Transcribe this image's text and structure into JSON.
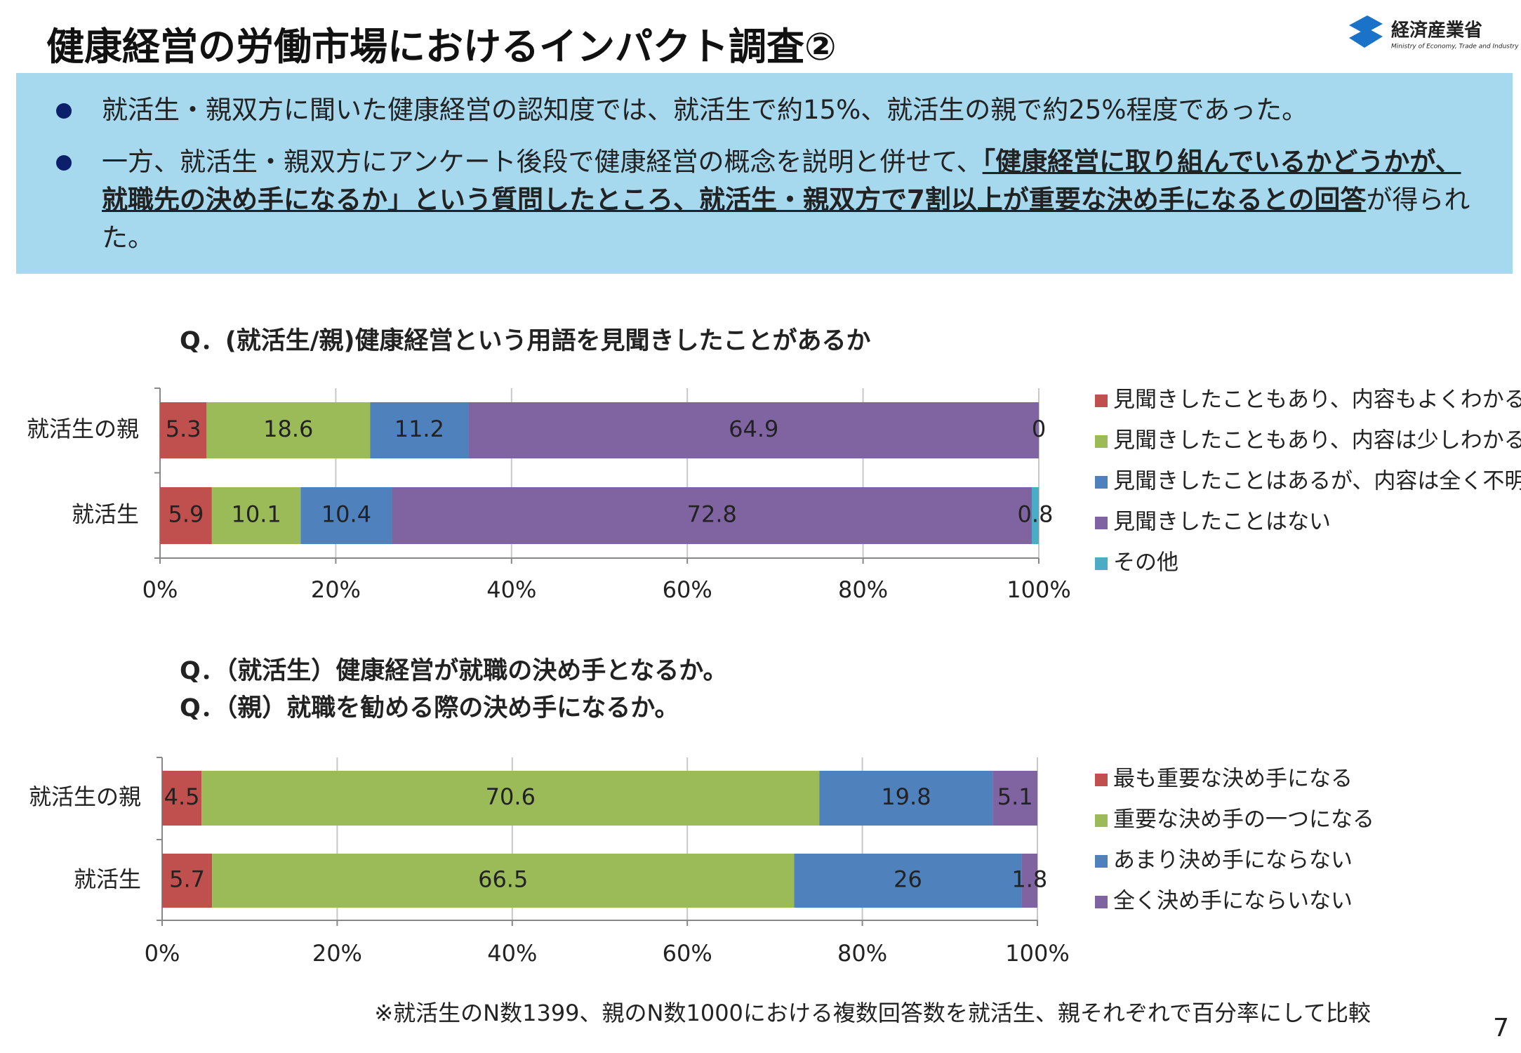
{
  "header": {
    "title": "健康経営の労働市場におけるインパクト調査②"
  },
  "logo": {
    "name": "経済産業省",
    "english": "Ministry of Economy, Trade and Industry"
  },
  "bullets": [
    {
      "text": "就活生・親双方に聞いた健康経営の認知度では、就活生で約15%、就活生の親で約25%程度であった。"
    },
    {
      "before": "一方、就活生・親双方にアンケート後段で健康経営の概念を説明と併せて、",
      "emphasis": "「健康経営に取り組んでいるかどうかが、就職先の決め手になるか」という質問したところ、就活生・親双方で7割以上が重要な決め手になるとの回答",
      "after": "が得られた。"
    }
  ],
  "chart_data": [
    {
      "type": "stacked_bar_horizontal",
      "title": "Q．(就活生/親)健康経営という用語を見聞きしたことがあるか",
      "categories": [
        "就活生の親",
        "就活生"
      ],
      "series": [
        {
          "name": "見聞きしたこともあり、内容もよくわかる",
          "color": "#c0504d",
          "values": [
            5.3,
            5.9
          ]
        },
        {
          "name": "見聞きしたこともあり、内容は少しわかる",
          "color": "#9bbb59",
          "values": [
            18.6,
            10.1
          ]
        },
        {
          "name": "見聞きしたことはあるが、内容は全く不明",
          "color": "#4f81bd",
          "values": [
            11.2,
            10.4
          ]
        },
        {
          "name": "見聞きしたことはない",
          "color": "#8064a2",
          "values": [
            64.9,
            72.8
          ]
        },
        {
          "name": "その他",
          "color": "#4bacc6",
          "values": [
            0,
            0.8
          ]
        }
      ],
      "xlim": [
        0,
        100
      ],
      "xticks": [
        {
          "value": 0,
          "label": "0%"
        },
        {
          "value": 20,
          "label": "20%"
        },
        {
          "value": 40,
          "label": "40%"
        },
        {
          "value": 60,
          "label": "60%"
        },
        {
          "value": 80,
          "label": "80%"
        },
        {
          "value": 100,
          "label": "100%"
        }
      ],
      "grid": true,
      "legend": "right"
    },
    {
      "type": "stacked_bar_horizontal",
      "title": "Q．（就活生）健康経営が就職の決め手となるか。",
      "subtitle": "Q．（親）就職を勧める際の決め手になるか。",
      "categories": [
        "就活生の親",
        "就活生"
      ],
      "series": [
        {
          "name": "最も重要な決め手になる",
          "color": "#c0504d",
          "values": [
            4.5,
            5.7
          ]
        },
        {
          "name": "重要な決め手の一つになる",
          "color": "#9bbb59",
          "values": [
            70.6,
            66.5
          ]
        },
        {
          "name": "あまり決め手にならない",
          "color": "#4f81bd",
          "values": [
            19.8,
            26
          ]
        },
        {
          "name": "全く決め手にならいない",
          "color": "#8064a2",
          "values": [
            5.1,
            1.8
          ]
        }
      ],
      "xlim": [
        0,
        100
      ],
      "xticks": [
        {
          "value": 0,
          "label": "0%"
        },
        {
          "value": 20,
          "label": "20%"
        },
        {
          "value": 40,
          "label": "40%"
        },
        {
          "value": 60,
          "label": "60%"
        },
        {
          "value": 80,
          "label": "80%"
        },
        {
          "value": 100,
          "label": "100%"
        }
      ],
      "grid": true,
      "legend": "right"
    }
  ],
  "footnote": "※就活生のN数1399、親のN数1000における複数回答数を就活生、親それぞれで百分率にして比較",
  "page_number": "7"
}
